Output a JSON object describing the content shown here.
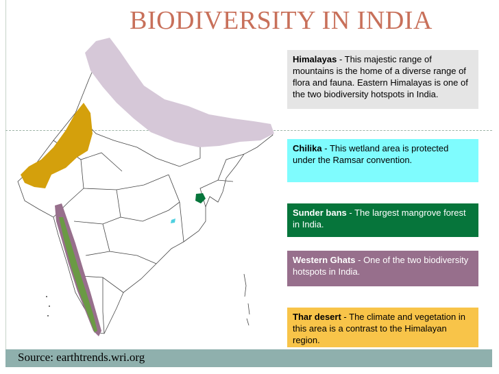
{
  "title": "BIODIVERSITY IN INDIA",
  "boxes": {
    "himalayas": {
      "name": "Himalayas",
      "text": " - This  majestic range of mountains is the home of a diverse range of  flora and fauna. Eastern Himalayas is one of the two biodiversity hotspots in India."
    },
    "chilika": {
      "name": "Chilika",
      "text": " - This wetland area is protected under the Ramsar convention."
    },
    "sunderbans": {
      "name": "Sunder bans",
      "text": " - The largest mangrove forest in India."
    },
    "western_ghats": {
      "name": "Western Ghats",
      "text": " - One of the two biodiversity hotspots in India."
    },
    "thar": {
      "name": "Thar desert",
      "text": " - The climate and vegetation in this area is a contrast to the Himalayan region."
    }
  },
  "source": "Source: earthtrends.wri.org",
  "colors": {
    "title": "#c8705a",
    "himalayas": "#d6c8d8",
    "chilika": "#7ffcfe",
    "sunderbans": "#06753b",
    "western_ghats": "#976f8c",
    "western_ghats_inner": "#6a9a44",
    "thar": "#d4a00c",
    "footer": "#8fb0ad"
  }
}
